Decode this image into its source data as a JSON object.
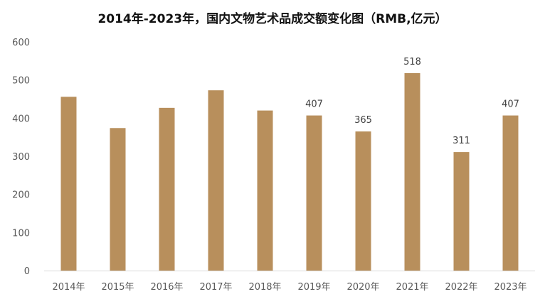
{
  "chart_data": {
    "type": "bar",
    "title": "2014年-2023年，国内文物艺术品成交额变化图（RMB,亿元）",
    "categories": [
      "2014年",
      "2015年",
      "2016年",
      "2017年",
      "2018年",
      "2019年",
      "2020年",
      "2021年",
      "2022年",
      "2023年"
    ],
    "values": [
      456,
      374,
      427,
      473,
      420,
      407,
      365,
      518,
      311,
      407
    ],
    "data_labels": [
      "",
      "",
      "",
      "",
      "",
      "407",
      "365",
      "518",
      "311",
      "407"
    ],
    "yticks": [
      "0",
      "100",
      "200",
      "300",
      "400",
      "500",
      "600"
    ],
    "ylim": [
      0,
      600
    ],
    "grid": false,
    "legend": "none",
    "bar_color": "#B88F5C",
    "axis_color": "#D9D9D9"
  }
}
